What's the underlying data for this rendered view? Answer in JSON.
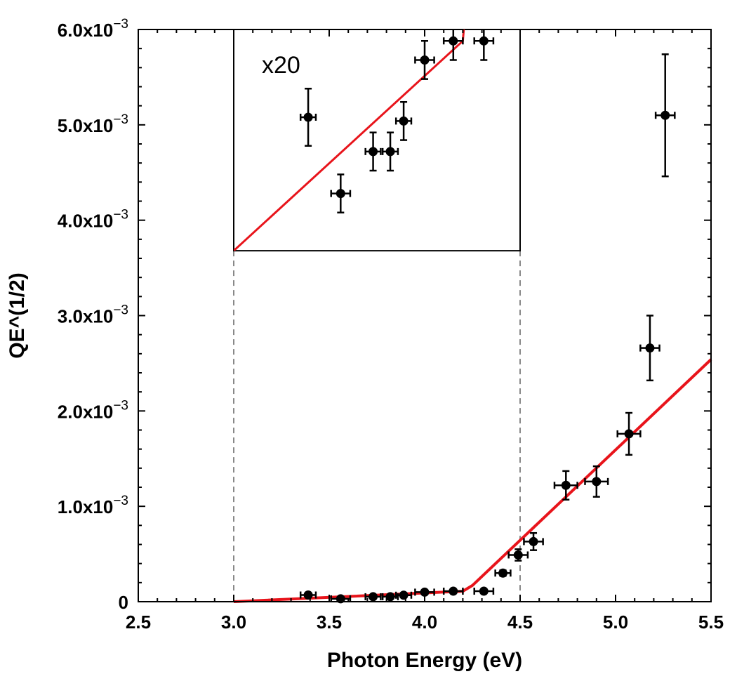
{
  "chart_data": {
    "type": "scatter",
    "xlabel": "Photon Energy (eV)",
    "ylabel": "QE^(1/2)",
    "xlim": [
      2.5,
      5.5
    ],
    "ylim": [
      0,
      0.006
    ],
    "x_ticks": [
      {
        "value": 2.5,
        "label": "2.5"
      },
      {
        "value": 3.0,
        "label": "3.0"
      },
      {
        "value": 3.5,
        "label": "3.5"
      },
      {
        "value": 4.0,
        "label": "4.0"
      },
      {
        "value": 4.5,
        "label": "4.5"
      },
      {
        "value": 5.0,
        "label": "5.0"
      },
      {
        "value": 5.5,
        "label": "5.5"
      }
    ],
    "y_ticks": [
      {
        "value": 0,
        "mantissa": "0",
        "exponent": ""
      },
      {
        "value": 0.001,
        "mantissa": "1.0x10",
        "exponent": "−3"
      },
      {
        "value": 0.002,
        "mantissa": "2.0x10",
        "exponent": "−3"
      },
      {
        "value": 0.003,
        "mantissa": "3.0x10",
        "exponent": "−3"
      },
      {
        "value": 0.004,
        "mantissa": "4.0x10",
        "exponent": "−3"
      },
      {
        "value": 0.005,
        "mantissa": "5.0x10",
        "exponent": "−3"
      },
      {
        "value": 0.006,
        "mantissa": "6.0x10",
        "exponent": "−3"
      }
    ],
    "points": [
      {
        "x": 3.39,
        "y": 7e-05,
        "xerr": 0.04,
        "yerr": 1.5e-05
      },
      {
        "x": 3.56,
        "y": 3e-05,
        "xerr": 0.05,
        "yerr": 1e-05
      },
      {
        "x": 3.73,
        "y": 5.2e-05,
        "xerr": 0.04,
        "yerr": 1e-05
      },
      {
        "x": 3.82,
        "y": 5.2e-05,
        "xerr": 0.04,
        "yerr": 1e-05
      },
      {
        "x": 3.89,
        "y": 6.8e-05,
        "xerr": 0.04,
        "yerr": 1e-05
      },
      {
        "x": 4.0,
        "y": 0.0001,
        "xerr": 0.05,
        "yerr": 1e-05
      },
      {
        "x": 4.15,
        "y": 0.00011,
        "xerr": 0.05,
        "yerr": 1e-05
      },
      {
        "x": 4.31,
        "y": 0.00011,
        "xerr": 0.05,
        "yerr": 1e-05
      },
      {
        "x": 4.41,
        "y": 0.0003,
        "xerr": 0.04,
        "yerr": 3e-05
      },
      {
        "x": 4.49,
        "y": 0.00049,
        "xerr": 0.05,
        "yerr": 6e-05
      },
      {
        "x": 4.57,
        "y": 0.00063,
        "xerr": 0.05,
        "yerr": 9e-05
      },
      {
        "x": 4.74,
        "y": 0.00122,
        "xerr": 0.06,
        "yerr": 0.00015
      },
      {
        "x": 4.9,
        "y": 0.00126,
        "xerr": 0.06,
        "yerr": 0.00016
      },
      {
        "x": 5.07,
        "y": 0.00176,
        "xerr": 0.06,
        "yerr": 0.00022
      },
      {
        "x": 5.18,
        "y": 0.00266,
        "xerr": 0.05,
        "yerr": 0.00034
      },
      {
        "x": 5.26,
        "y": 0.0051,
        "xerr": 0.05,
        "yerr": 0.00064
      }
    ],
    "fit_line": {
      "color": "#e8141b",
      "points": [
        {
          "x": 3.0,
          "y": 0.0
        },
        {
          "x": 4.2,
          "y": 0.00011
        },
        {
          "x": 4.25,
          "y": 0.00017
        },
        {
          "x": 5.5,
          "y": 0.00254
        }
      ]
    },
    "inset": {
      "label": "x20",
      "scale": 20,
      "xlim": [
        3.0,
        4.5
      ],
      "y_baseline": 0.00368,
      "x_guides": [
        3.0,
        4.5
      ]
    },
    "colors": {
      "points": "#000000",
      "fit": "#e8141b",
      "guides": "#888888"
    }
  }
}
